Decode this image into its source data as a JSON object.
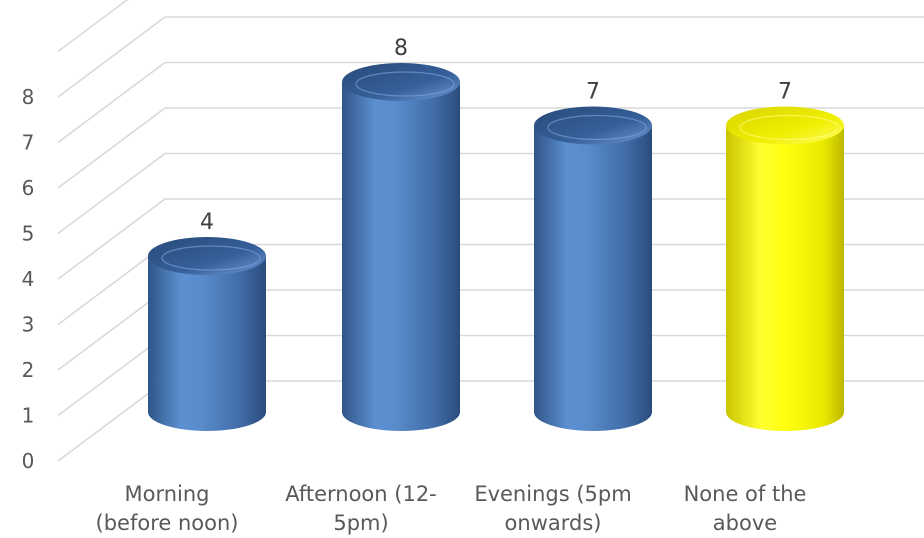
{
  "chart_data": {
    "type": "bar",
    "style": "3d-cylinder",
    "categories": [
      [
        "Morning",
        "(before noon)"
      ],
      [
        "Afternoon (12-",
        "5pm)"
      ],
      [
        "Evenings (5pm",
        "onwards)"
      ],
      [
        "None of the",
        "above"
      ]
    ],
    "values": [
      4,
      8,
      7,
      7
    ],
    "data_labels": [
      "4",
      "8",
      "7",
      "7"
    ],
    "y_ticks": [
      "0",
      "1",
      "2",
      "3",
      "4",
      "5",
      "6",
      "7",
      "8"
    ],
    "ylim": [
      0,
      9
    ],
    "grid": true,
    "colors": {
      "bar": "#4f81bd",
      "highlight": "#ffff00",
      "grid": "#d9d9d9",
      "tick_text": "#595959",
      "label_text": "#404040"
    },
    "highlight_index": 3
  }
}
